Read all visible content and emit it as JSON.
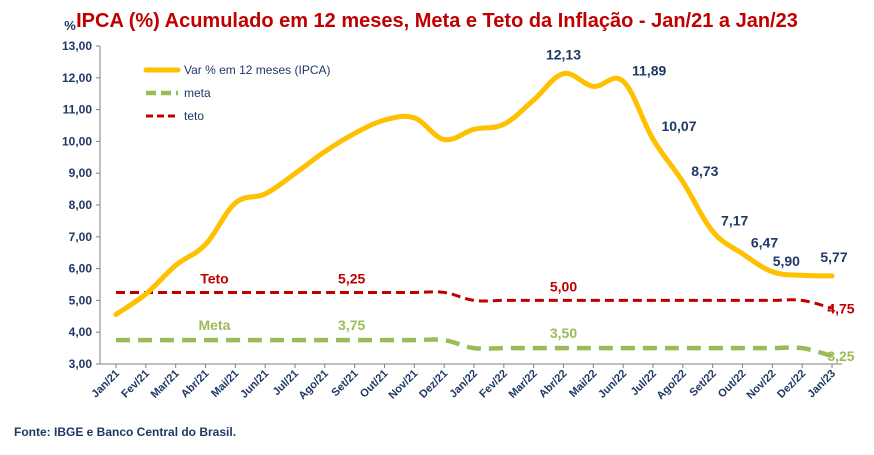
{
  "chart_data": {
    "type": "line",
    "title": "IPCA (%) Acumulado em 12 meses, Meta e Teto da Inflação - Jan/21 a Jan/23",
    "unit_label": "%",
    "source": "Fonte: IBGE e Banco Central do Brasil.",
    "ylim": [
      3.0,
      13.0
    ],
    "yticks": [
      "3,00",
      "4,00",
      "5,00",
      "6,00",
      "7,00",
      "8,00",
      "9,00",
      "10,00",
      "11,00",
      "12,00",
      "13,00"
    ],
    "categories": [
      "Jan/21",
      "Fev/21",
      "Mar/21",
      "Abr/21",
      "Mai/21",
      "Jun/21",
      "Jul/21",
      "Ago/21",
      "Set/21",
      "Out/21",
      "Nov/21",
      "Dez/21",
      "Jan/22",
      "Fev/22",
      "Mar/22",
      "Abr/22",
      "Mai/22",
      "Jun/22",
      "Jul/22",
      "Ago/22",
      "Set/22",
      "Out/22",
      "Nov/22",
      "Dez/22",
      "Jan/23"
    ],
    "series": [
      {
        "name": "Var  % em 12 meses (IPCA)",
        "color": "#ffc000",
        "style": "solid",
        "values": [
          4.56,
          5.2,
          6.1,
          6.76,
          8.06,
          8.35,
          8.99,
          9.68,
          10.25,
          10.67,
          10.74,
          10.06,
          10.38,
          10.54,
          11.3,
          12.13,
          11.73,
          11.89,
          10.07,
          8.73,
          7.17,
          6.47,
          5.9,
          5.79,
          5.77
        ]
      },
      {
        "name": "meta",
        "color": "#9bbb59",
        "style": "dashed",
        "values": [
          3.75,
          3.75,
          3.75,
          3.75,
          3.75,
          3.75,
          3.75,
          3.75,
          3.75,
          3.75,
          3.75,
          3.75,
          3.5,
          3.5,
          3.5,
          3.5,
          3.5,
          3.5,
          3.5,
          3.5,
          3.5,
          3.5,
          3.5,
          3.5,
          3.25
        ]
      },
      {
        "name": "teto",
        "color": "#c00000",
        "style": "dashed",
        "values": [
          5.25,
          5.25,
          5.25,
          5.25,
          5.25,
          5.25,
          5.25,
          5.25,
          5.25,
          5.25,
          5.25,
          5.25,
          5.0,
          5.0,
          5.0,
          5.0,
          5.0,
          5.0,
          5.0,
          5.0,
          5.0,
          5.0,
          5.0,
          5.0,
          4.75
        ]
      }
    ],
    "ipca_labels": [
      {
        "index": 15,
        "text": "12,13"
      },
      {
        "index": 17,
        "text": "11,89"
      },
      {
        "index": 18,
        "text": "10,07"
      },
      {
        "index": 19,
        "text": "8,73"
      },
      {
        "index": 20,
        "text": "7,17"
      },
      {
        "index": 21,
        "text": "6,47"
      },
      {
        "index": 22,
        "text": "5,90"
      },
      {
        "index": 24,
        "text": "5,77"
      }
    ],
    "annotations": [
      {
        "text": "Teto",
        "color": "#c00000"
      },
      {
        "text": "5,25",
        "color": "#c00000"
      },
      {
        "text": "5,00",
        "color": "#c00000"
      },
      {
        "text": "4,75",
        "color": "#c00000"
      },
      {
        "text": "Meta",
        "color": "#9bbb59"
      },
      {
        "text": "3,75",
        "color": "#9bbb59"
      },
      {
        "text": "3,50",
        "color": "#9bbb59"
      },
      {
        "text": "3,25",
        "color": "#9bbb59"
      }
    ],
    "legend_position": "top-left",
    "grid": false
  }
}
